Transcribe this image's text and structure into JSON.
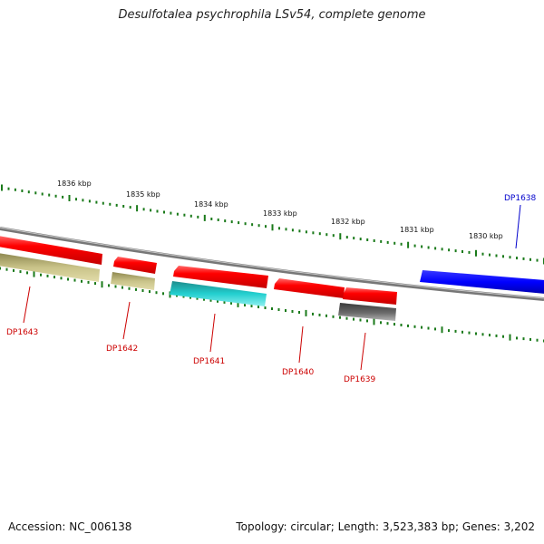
{
  "header": {
    "title": "Desulfotalea psychrophila LSv54, complete genome"
  },
  "footer": {
    "accession": "Accession: NC_006138",
    "summary": "Topology: circular; Length: 3,523,383 bp; Genes: 3,202"
  },
  "scale": {
    "labels": [
      "1836 kbp",
      "1835 kbp",
      "1834 kbp",
      "1833 kbp",
      "1832 kbp",
      "1831 kbp",
      "1830 kbp"
    ]
  },
  "genes": [
    {
      "id": "DP1643",
      "color": "#cc0000"
    },
    {
      "id": "DP1642",
      "color": "#cc0000"
    },
    {
      "id": "DP1641",
      "color": "#cc0000"
    },
    {
      "id": "DP1640",
      "color": "#cc0000"
    },
    {
      "id": "DP1639",
      "color": "#cc0000"
    },
    {
      "id": "DP1638",
      "color": "#0000cc"
    }
  ],
  "colors": {
    "forward_cds": "#ff0000",
    "reverse_cds": "#0000ff",
    "feature_olive": "#bdb76b",
    "feature_cyan": "#00cccc",
    "feature_grey": "#666666",
    "backbone": "#808080",
    "ticks": "#1a7a1a",
    "label_forward": "#cc0000",
    "label_reverse": "#0000cc"
  }
}
